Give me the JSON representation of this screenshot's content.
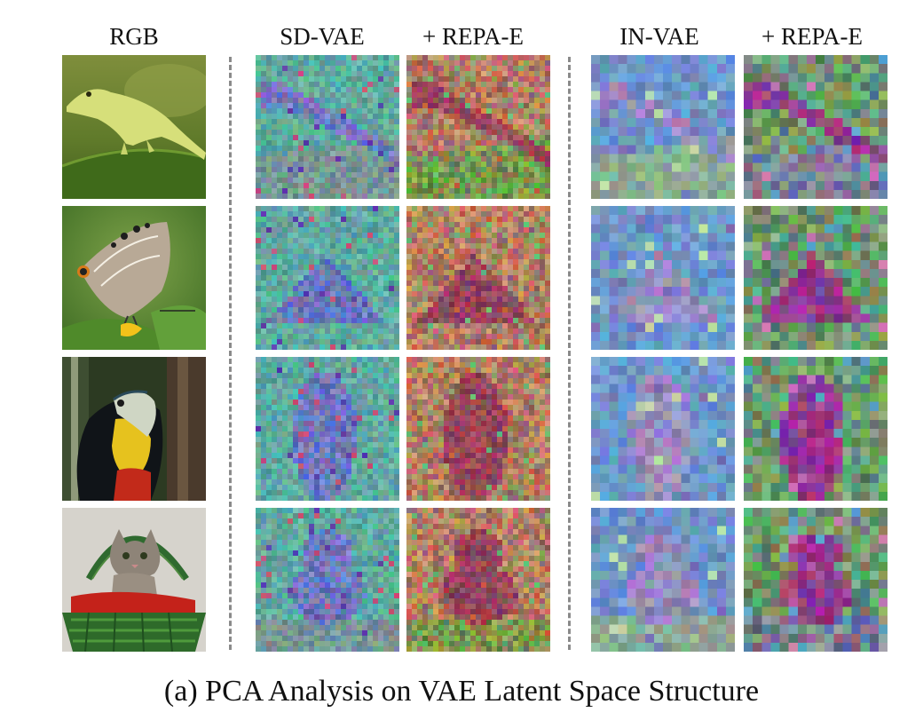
{
  "figure": {
    "columns": [
      {
        "key": "rgb",
        "label": "RGB"
      },
      {
        "key": "sd_vae",
        "label": "SD-VAE"
      },
      {
        "key": "sd_vae_repa",
        "label": "+ REPA-E"
      },
      {
        "key": "in_vae",
        "label": "IN-VAE"
      },
      {
        "key": "in_vae_repa",
        "label": "+ REPA-E"
      }
    ],
    "rows": [
      {
        "subject": "lizard-image"
      },
      {
        "subject": "butterfly-image"
      },
      {
        "subject": "toucan-image"
      },
      {
        "subject": "kitten-image"
      }
    ],
    "caption": "(a) PCA Analysis on VAE Latent Space Structure"
  }
}
